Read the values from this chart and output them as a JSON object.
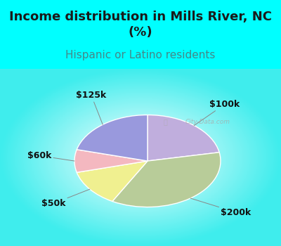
{
  "title": "Income distribution in Mills River, NC\n(%)",
  "subtitle": "Hispanic or Latino residents",
  "title_fontsize": 13,
  "subtitle_fontsize": 11,
  "title_color": "#1a1a1a",
  "subtitle_color": "#448888",
  "background_color": "#00ffff",
  "watermark": "City-Data.com",
  "slices": [
    {
      "label": "$100k",
      "value": 22,
      "color": "#c0aedd"
    },
    {
      "label": "$200k",
      "value": 36,
      "color": "#b8cc99"
    },
    {
      "label": "$50k",
      "value": 13,
      "color": "#f0f090"
    },
    {
      "label": "$60k",
      "value": 8,
      "color": "#f4b8c0"
    },
    {
      "label": "$125k",
      "value": 21,
      "color": "#9999dd"
    }
  ],
  "label_fontsize": 9,
  "label_color": "#111111"
}
